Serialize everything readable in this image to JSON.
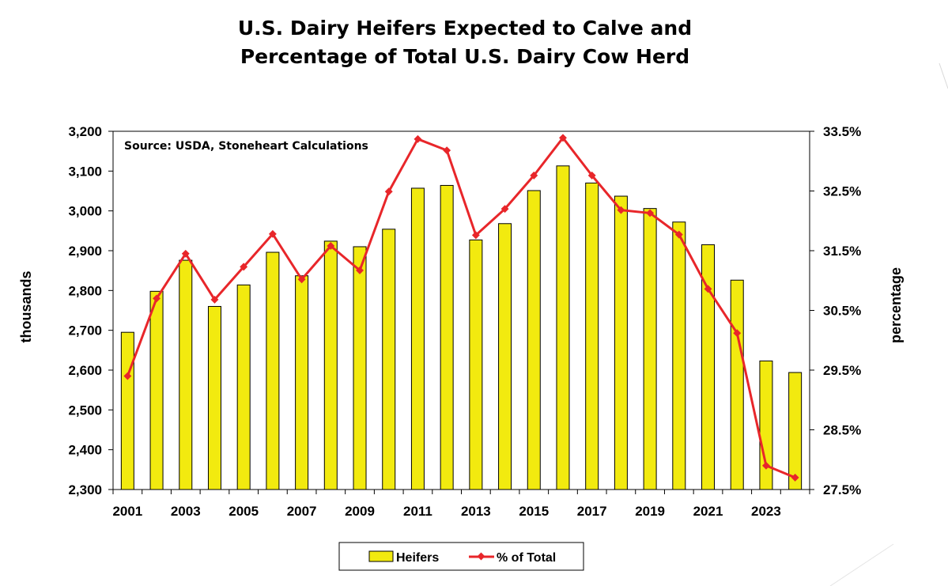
{
  "chart_data": {
    "type": "bar+line",
    "title_lines": [
      "U.S. Dairy Heifers Expected to Calve and",
      "Percentage of Total U.S. Dairy Cow Herd"
    ],
    "annotation": "Source: USDA, Stoneheart Calculations",
    "x": [
      2001,
      2002,
      2003,
      2004,
      2005,
      2006,
      2007,
      2008,
      2009,
      2010,
      2011,
      2012,
      2013,
      2014,
      2015,
      2016,
      2017,
      2018,
      2019,
      2020,
      2021,
      2022,
      2023,
      2024
    ],
    "x_tick_labels": [
      "2001",
      "2003",
      "2005",
      "2007",
      "2009",
      "2011",
      "2013",
      "2015",
      "2017",
      "2019",
      "2021",
      "2023"
    ],
    "ylabel_left": "thousands",
    "ylabel_right": "percentage",
    "ylim_left": [
      2300,
      3200
    ],
    "ylim_right": [
      27.5,
      33.5
    ],
    "left_tick_labels": [
      "3,200",
      "3,100",
      "3,000",
      "2,900",
      "2,800",
      "2,700",
      "2,600",
      "2,500",
      "2,400",
      "2,300"
    ],
    "right_tick_labels": [
      "33.5%",
      "32.5%",
      "31.5%",
      "30.5%",
      "29.5%",
      "28.5%",
      "27.5%"
    ],
    "series": [
      {
        "name": "Heifers",
        "type": "bar",
        "axis": "left",
        "color": "#f2ea0f",
        "values": [
          2695,
          2798,
          2876,
          2760,
          2814,
          2896,
          2837,
          2924,
          2910,
          2954,
          3057,
          3064,
          2927,
          2968,
          3051,
          3113,
          3070,
          3037,
          3006,
          2972,
          2915,
          2826,
          2623,
          2594
        ]
      },
      {
        "name": "% of Total",
        "type": "line",
        "axis": "right",
        "color": "#e8262a",
        "values": [
          29.4,
          30.7,
          31.45,
          30.68,
          31.23,
          31.78,
          31.02,
          31.58,
          31.17,
          32.49,
          33.37,
          33.18,
          31.76,
          32.2,
          32.76,
          33.39,
          32.76,
          32.18,
          32.13,
          31.77,
          30.86,
          30.12,
          27.9,
          27.7
        ]
      }
    ],
    "legend": {
      "position": "bottom-center",
      "entries": [
        "Heifers",
        "% of Total"
      ]
    }
  }
}
